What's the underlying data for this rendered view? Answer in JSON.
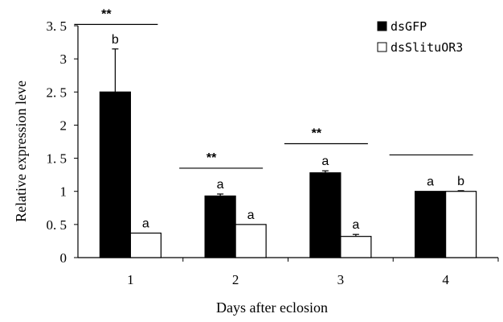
{
  "chart_data": {
    "type": "bar",
    "xlabel": "Days after eclosion",
    "ylabel": "Relative expression leve",
    "ylim": [
      0,
      3.5
    ],
    "yticks": [
      "0",
      "0. 5",
      "1",
      "1. 5",
      "2",
      "2. 5",
      "3",
      "3. 5"
    ],
    "categories": [
      "1",
      "2",
      "3",
      "4"
    ],
    "legend_position": "top-right",
    "series": [
      {
        "name": "dsGFP",
        "color": "#000000",
        "values": [
          2.5,
          0.93,
          1.28,
          1.0
        ],
        "errors": [
          0.65,
          0.03,
          0.03,
          0.0
        ],
        "letters": [
          "b",
          "a",
          "a",
          "a"
        ]
      },
      {
        "name": "dsSlituOR3",
        "color": "#ffffff",
        "values": [
          0.37,
          0.5,
          0.32,
          1.0
        ],
        "errors": [
          0.0,
          0.0,
          0.03,
          0.01
        ],
        "letters": [
          "a",
          "a",
          "a",
          "b"
        ]
      }
    ],
    "significance": [
      {
        "category_index": 0,
        "label": "**",
        "y": 3.52
      },
      {
        "category_index": 1,
        "label": "**",
        "y": 1.35
      },
      {
        "category_index": 2,
        "label": "**",
        "y": 1.72
      },
      {
        "category_index": 3,
        "label": "",
        "y": 1.55
      }
    ]
  }
}
